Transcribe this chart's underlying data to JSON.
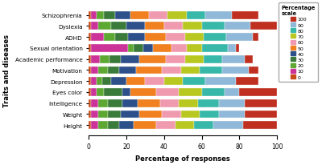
{
  "categories": [
    "Schizophrenia",
    "Dyslexia",
    "ADHD",
    "Sexual orientation",
    "Academic performance",
    "Motivation",
    "Depression",
    "Eyes color",
    "Intelligence",
    "Weight",
    "Height"
  ],
  "scale_labels": [
    "0",
    "10",
    "20",
    "30",
    "40",
    "50",
    "60",
    "70",
    "80",
    "90",
    "100"
  ],
  "seg_colors": [
    "#cc4c00",
    "#cc3399",
    "#339933",
    "#336633",
    "#336699",
    "#ff9933",
    "#ff99bb",
    "#cccc44",
    "#44bbaa",
    "#aabbdd",
    "#cc3333"
  ],
  "bar_data": {
    "Schizophrenia": [
      1,
      3,
      4,
      6,
      8,
      10,
      10,
      10,
      10,
      14,
      14
    ],
    "Dyslexia": [
      1,
      4,
      7,
      8,
      10,
      10,
      10,
      10,
      12,
      14,
      14
    ],
    "ADHD": [
      1,
      7,
      6,
      7,
      9,
      11,
      10,
      10,
      12,
      14,
      3
    ],
    "Sexual orientation": [
      1,
      20,
      3,
      5,
      5,
      10,
      8,
      8,
      14,
      4,
      2
    ],
    "Academic performance": [
      1,
      5,
      5,
      6,
      10,
      14,
      10,
      10,
      10,
      12,
      4
    ],
    "Motivation": [
      1,
      4,
      5,
      6,
      9,
      14,
      10,
      10,
      12,
      14,
      5
    ],
    "Depression": [
      1,
      3,
      3,
      5,
      8,
      10,
      10,
      10,
      12,
      16,
      12
    ],
    "Eyes color": [
      1,
      3,
      4,
      10,
      4,
      14,
      12,
      12,
      12,
      8,
      20
    ],
    "Intelligence": [
      1,
      4,
      5,
      8,
      8,
      12,
      10,
      10,
      11,
      14,
      17
    ],
    "Weight": [
      1,
      4,
      5,
      7,
      10,
      12,
      10,
      10,
      10,
      14,
      17
    ],
    "Height": [
      1,
      4,
      5,
      6,
      8,
      12,
      10,
      10,
      10,
      16,
      18
    ]
  },
  "xlabel": "Percentage of responses",
  "ylabel": "Traits and diseases",
  "legend_title": "Percentage\nscale",
  "figsize": [
    4.0,
    2.07
  ],
  "dpi": 100
}
